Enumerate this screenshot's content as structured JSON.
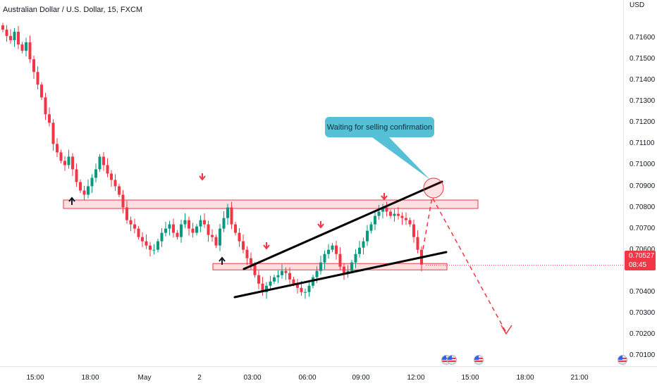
{
  "chart_title": "Australian Dollar / U.S. Dollar, 15, FXCM",
  "currency": "USD",
  "price_axis_ticks": [
    "0.71600",
    "0.71500",
    "0.71400",
    "0.71300",
    "0.71200",
    "0.71100",
    "0.71000",
    "0.70900",
    "0.70800",
    "0.70700",
    "0.70600",
    "0.70400",
    "0.70300",
    "0.70200",
    "0.70100"
  ],
  "current_price": "0.70527",
  "countdown": "08:45",
  "time_axis_ticks": [
    "15:00",
    "18:00",
    "May",
    "2",
    "03:00",
    "06:00",
    "09:00",
    "12:00",
    "15:00",
    "18:00",
    "21:00"
  ],
  "annotation": "Waiting for selling confirmation",
  "colors": {
    "up": "#089981",
    "down": "#f23645",
    "zone_fill": "#f7c5c9",
    "zone_border": "#f23645",
    "callout": "#56c1d6",
    "trendline": "#000000"
  },
  "chart_data": {
    "type": "candlestick",
    "symbol": "AUDUSD",
    "timeframe": "15",
    "y_unit": "USD",
    "ylim": [
      0.7005,
      0.7178
    ],
    "last": 0.70527,
    "zones": [
      [
        0.70795,
        0.70835
      ],
      [
        0.70505,
        0.70535
      ]
    ],
    "closes": [
      0.7164,
      0.7161,
      0.7159,
      0.7163,
      0.7157,
      0.7154,
      0.7158,
      0.715,
      0.7144,
      0.7138,
      0.7132,
      0.7124,
      0.712,
      0.711,
      0.7106,
      0.7102,
      0.71,
      0.7104,
      0.7098,
      0.7092,
      0.7088,
      0.7086,
      0.709,
      0.7094,
      0.7098,
      0.7104,
      0.71,
      0.7096,
      0.7093,
      0.709,
      0.7086,
      0.708,
      0.7074,
      0.7072,
      0.707,
      0.7066,
      0.7064,
      0.7062,
      0.706,
      0.706,
      0.7064,
      0.7068,
      0.707,
      0.7072,
      0.7068,
      0.7066,
      0.7072,
      0.7074,
      0.707,
      0.7068,
      0.7071,
      0.7074,
      0.7072,
      0.7067,
      0.7066,
      0.7062,
      0.707,
      0.7075,
      0.708,
      0.7072,
      0.7068,
      0.7064,
      0.706,
      0.7056,
      0.7053,
      0.7048,
      0.7044,
      0.704,
      0.7043,
      0.7045,
      0.7047,
      0.7048,
      0.705,
      0.7049,
      0.7046,
      0.7044,
      0.7042,
      0.704,
      0.704,
      0.7043,
      0.7047,
      0.705,
      0.7054,
      0.7058,
      0.706,
      0.7062,
      0.7058,
      0.7052,
      0.7049,
      0.705,
      0.7054,
      0.7058,
      0.7061,
      0.7064,
      0.7069,
      0.7072,
      0.7076,
      0.7078,
      0.708,
      0.7078,
      0.7076,
      0.7077,
      0.7076,
      0.7075,
      0.7074,
      0.7072,
      0.7066,
      0.706,
      0.7053
    ]
  }
}
